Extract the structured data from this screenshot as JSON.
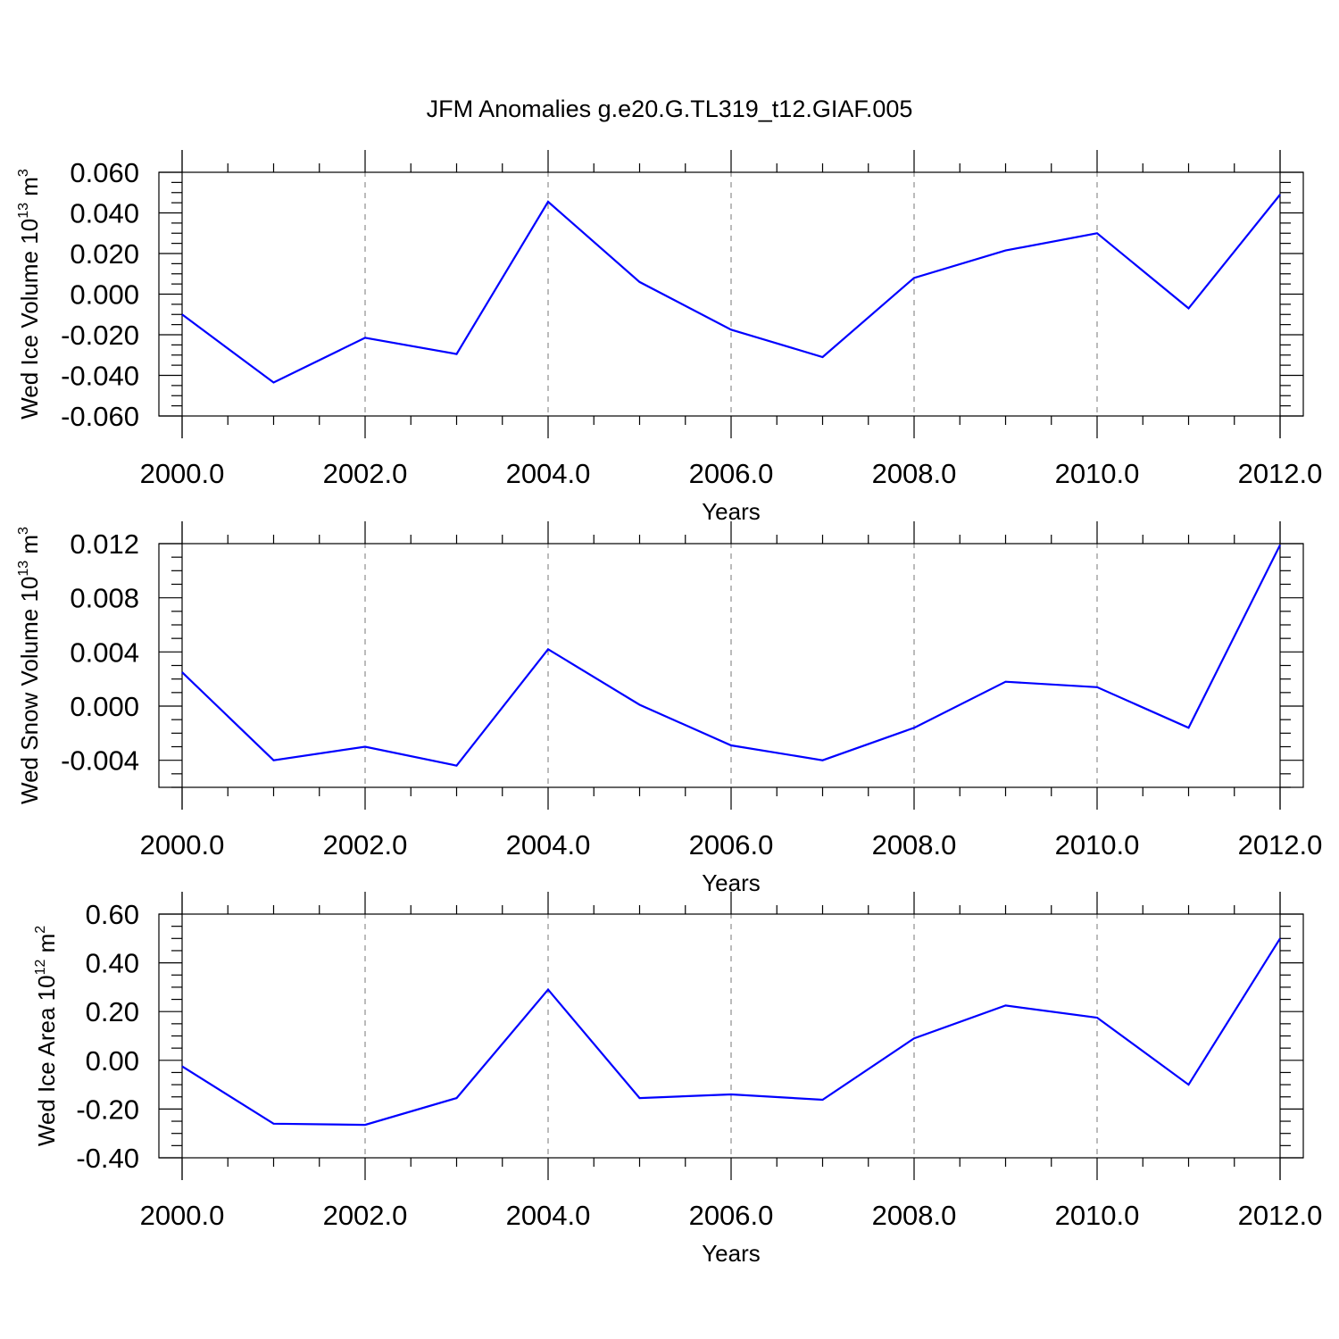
{
  "title": "JFM Anomalies g.e20.G.TL319_t12.GIAF.005",
  "series_color": "#0000ff",
  "chart_data": [
    {
      "type": "line",
      "xlabel": "Years",
      "ylabel": {
        "base": "Wed Ice Volume 10",
        "exp1": "13",
        "mid": " m",
        "exp2": "3"
      },
      "xlim": [
        2000,
        2012
      ],
      "ylim": [
        -0.06,
        0.06
      ],
      "xticks": [
        "2000.0",
        "2002.0",
        "2004.0",
        "2006.0",
        "2008.0",
        "2010.0",
        "2012.0"
      ],
      "yticks": [
        "-0.060",
        "-0.040",
        "-0.020",
        "0.000",
        "0.020",
        "0.040",
        "0.060"
      ],
      "grid": "vertical dashed at major x ticks",
      "x": [
        2000,
        2001,
        2002,
        2003,
        2004,
        2005,
        2006,
        2007,
        2008,
        2009,
        2010,
        2011,
        2012
      ],
      "values": [
        -0.01,
        -0.0435,
        -0.0215,
        -0.0295,
        0.0455,
        0.006,
        -0.0175,
        -0.031,
        0.008,
        0.0215,
        0.03,
        -0.007,
        0.049
      ]
    },
    {
      "type": "line",
      "xlabel": "Years",
      "ylabel": {
        "base": "Wed Snow Volume 10",
        "exp1": "13",
        "mid": " m",
        "exp2": "3"
      },
      "xlim": [
        2000,
        2012
      ],
      "ylim": [
        -0.006,
        0.012
      ],
      "xticks": [
        "2000.0",
        "2002.0",
        "2004.0",
        "2006.0",
        "2008.0",
        "2010.0",
        "2012.0"
      ],
      "yticks": [
        "-0.004",
        "0.000",
        "0.004",
        "0.008",
        "0.012"
      ],
      "grid": "vertical dashed at major x ticks",
      "x": [
        2000,
        2001,
        2002,
        2003,
        2004,
        2005,
        2006,
        2007,
        2008,
        2009,
        2010,
        2011,
        2012
      ],
      "values": [
        0.0025,
        -0.004,
        -0.003,
        -0.0044,
        0.0042,
        0.0001,
        -0.0029,
        -0.004,
        -0.0016,
        0.0018,
        0.0014,
        -0.0016,
        0.0119
      ]
    },
    {
      "type": "line",
      "xlabel": "Years",
      "ylabel": {
        "base": "Wed Ice Area 10",
        "exp1": "12",
        "mid": " m",
        "exp2": "2"
      },
      "xlim": [
        2000,
        2012
      ],
      "ylim": [
        -0.4,
        0.6
      ],
      "xticks": [
        "2000.0",
        "2002.0",
        "2004.0",
        "2006.0",
        "2008.0",
        "2010.0",
        "2012.0"
      ],
      "yticks": [
        "-0.40",
        "-0.20",
        "0.00",
        "0.20",
        "0.40",
        "0.60"
      ],
      "grid": "vertical dashed at major x ticks",
      "x": [
        2000,
        2001,
        2002,
        2003,
        2004,
        2005,
        2006,
        2007,
        2008,
        2009,
        2010,
        2011,
        2012
      ],
      "values": [
        -0.025,
        -0.26,
        -0.265,
        -0.155,
        0.29,
        -0.155,
        -0.14,
        -0.162,
        0.09,
        0.225,
        0.175,
        -0.1,
        0.5
      ]
    }
  ]
}
